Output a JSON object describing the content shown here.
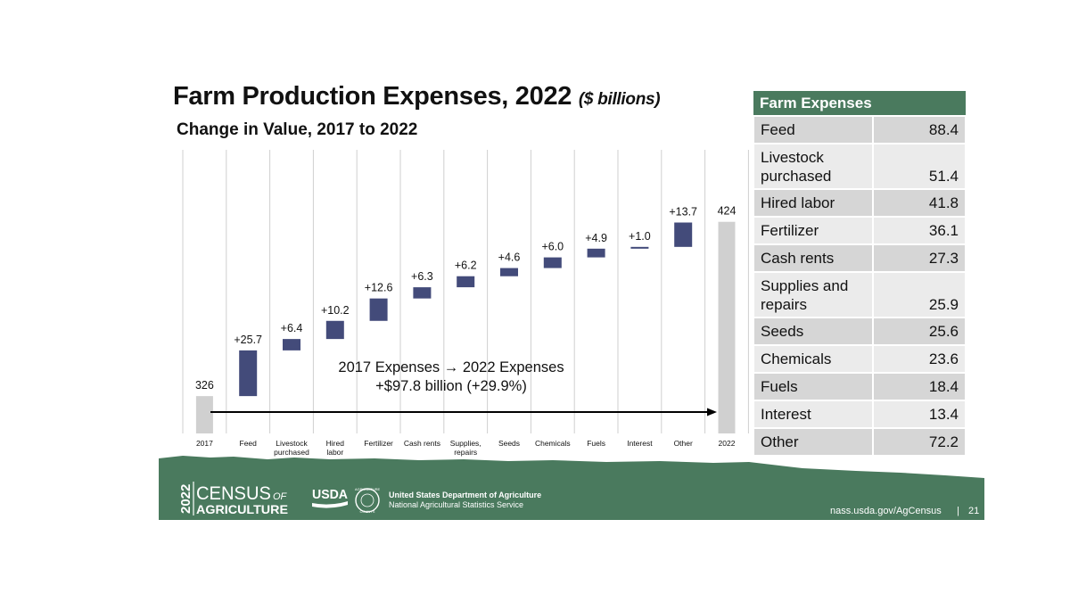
{
  "slide": {
    "title": "Farm Production Expenses, 2022",
    "title_unit": "($ billions)",
    "subtitle": "Change in Value, 2017 to 2022"
  },
  "chart_data": {
    "type": "bar",
    "subtype": "waterfall",
    "categories": [
      "2017",
      "Feed",
      "Livestock purchased",
      "Hired labor",
      "Fertilizer",
      "Cash rents",
      "Supplies, repairs",
      "Seeds",
      "Chemicals",
      "Fuels",
      "Interest",
      "Other",
      "2022"
    ],
    "category_lines": [
      [
        "2017"
      ],
      [
        "Feed"
      ],
      [
        "Livestock",
        "purchased"
      ],
      [
        "Hired",
        "labor"
      ],
      [
        "Fertilizer"
      ],
      [
        "Cash rents"
      ],
      [
        "Supplies,",
        "repairs"
      ],
      [
        "Seeds"
      ],
      [
        "Chemicals"
      ],
      [
        "Fuels"
      ],
      [
        "Interest"
      ],
      [
        "Other"
      ],
      [
        "2022"
      ]
    ],
    "start_value": 326,
    "end_value": 424,
    "changes": [
      25.7,
      6.4,
      10.2,
      12.6,
      6.3,
      6.2,
      4.6,
      6.0,
      4.9,
      1.0,
      13.7
    ],
    "value_labels": [
      "326",
      "+25.7",
      "+6.4",
      "+10.2",
      "+12.6",
      "+6.3",
      "+6.2",
      "+4.6",
      "+6.0",
      "+4.9",
      "+1.0",
      "+13.7",
      "424"
    ],
    "annotation": {
      "line1": "2017 Expenses → 2022 Expenses",
      "line2": "+$97.8 billion (+29.9%)"
    },
    "colors": {
      "total": "#d0d0d0",
      "increase": "#434b7a",
      "grid": "#cfcfcf",
      "arrow": "#000000"
    },
    "grid": true,
    "legend": "none"
  },
  "table": {
    "header": "Farm Expenses",
    "rows": [
      {
        "label": "Feed",
        "value": "88.4"
      },
      {
        "label": "Livestock purchased",
        "value": "51.4"
      },
      {
        "label": "Hired labor",
        "value": "41.8"
      },
      {
        "label": "Fertilizer",
        "value": "36.1"
      },
      {
        "label": "Cash rents",
        "value": "27.3"
      },
      {
        "label": "Supplies and repairs",
        "value": "25.9"
      },
      {
        "label": "Seeds",
        "value": "25.6"
      },
      {
        "label": "Chemicals",
        "value": "23.6"
      },
      {
        "label": "Fuels",
        "value": "18.4"
      },
      {
        "label": "Interest",
        "value": "13.4"
      },
      {
        "label": "Other",
        "value": "72.2"
      }
    ]
  },
  "footer": {
    "logo_year": "2022",
    "logo_census": "CENSUS",
    "logo_of": "OF",
    "logo_agriculture": "AGRICULTURE",
    "usda_logo": "USDA",
    "seal_text": "AGRICULTURE",
    "seal_text_bottom": "COUNTS",
    "department": "United States Department of Agriculture",
    "service": "National Agricultural Statistics Service",
    "url": "nass.usda.gov/AgCensus",
    "separator": "|",
    "page_number": "21",
    "bg_color": "#4a7a5e"
  }
}
